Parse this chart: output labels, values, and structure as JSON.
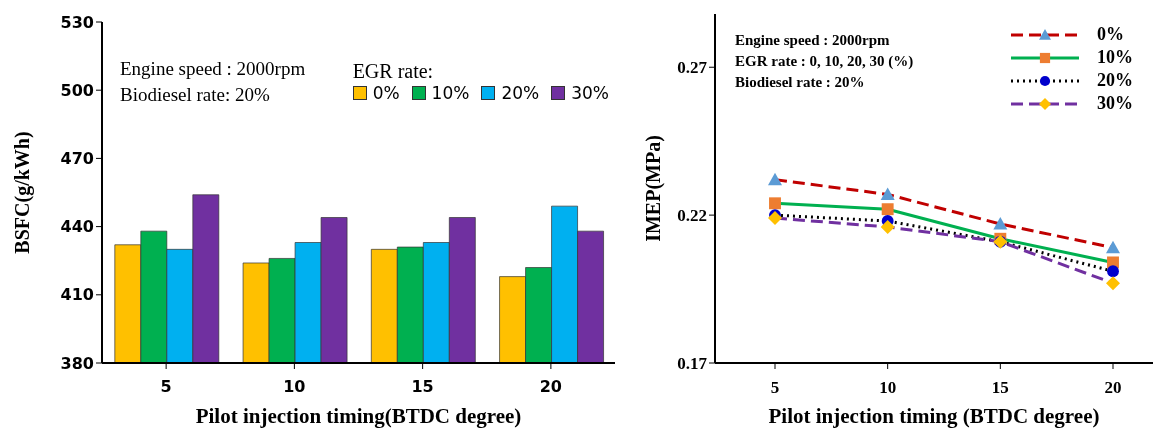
{
  "chart_data": [
    {
      "type": "bar",
      "xlabel": "Pilot injection timing(BTDC degree)",
      "ylabel": "BSFC(g/kWh)",
      "categories": [
        "5",
        "10",
        "15",
        "20"
      ],
      "ylim": [
        380,
        530
      ],
      "yticks": [
        380,
        410,
        440,
        470,
        500,
        530
      ],
      "legend": "top right",
      "legend_title": "EGR rate:",
      "annotations": [
        "Engine speed : 2000rpm",
        "Biodiesel rate: 20%"
      ],
      "series": [
        {
          "name": "0%",
          "color": "#ffc000",
          "values": [
            432,
            424,
            430,
            418
          ]
        },
        {
          "name": "10%",
          "color": "#00b050",
          "values": [
            438,
            426,
            431,
            422
          ]
        },
        {
          "name": "20%",
          "color": "#00b0f0",
          "values": [
            430,
            433,
            433,
            449
          ]
        },
        {
          "name": "30%",
          "color": "#7030a0",
          "values": [
            454,
            444,
            444,
            438
          ]
        }
      ]
    },
    {
      "type": "line",
      "xlabel": "Pilot injection timing (BTDC degree)",
      "ylabel": "IMEP(MPa)",
      "categories": [
        "5",
        "10",
        "15",
        "20"
      ],
      "ylim": [
        0.17,
        0.288
      ],
      "yticks": [
        0.17,
        0.22,
        0.27
      ],
      "legend": "top right",
      "annotations": [
        "Engine speed : 2000rpm",
        "EGR rate : 0, 10, 20, 30 (%)",
        "Biodiesel rate : 20%"
      ],
      "series": [
        {
          "name": "0%",
          "color": "#c00000",
          "line_style": "dashed",
          "marker": "triangle",
          "colors": [
            "#5b9bd5",
            "#5b9bd5",
            "#5b9bd5",
            "#5b9bd5"
          ],
          "values": [
            0.232,
            0.227,
            0.217,
            0.209
          ]
        },
        {
          "name": "10%",
          "color": "#00b050",
          "line_style": "solid",
          "marker": "square",
          "colors": [
            "#ed7d31",
            "#ed7d31",
            "#ed7d31",
            "#ed7d31"
          ],
          "values": [
            0.224,
            0.222,
            0.212,
            0.204
          ]
        },
        {
          "name": "20%",
          "color": "#000000",
          "line_style": "dotted",
          "marker": "circle",
          "colors": [
            "#0000cc",
            "#0000cc",
            "#0000cc",
            "#0000cc"
          ],
          "values": [
            0.22,
            0.218,
            0.211,
            0.201
          ]
        },
        {
          "name": "30%",
          "color": "#7030a0",
          "line_style": "dashed",
          "marker": "diamond",
          "colors": [
            "#ffc000",
            "#ffc000",
            "#ffc000",
            "#ffc000"
          ],
          "values": [
            0.219,
            0.216,
            0.211,
            0.197
          ]
        }
      ]
    }
  ]
}
